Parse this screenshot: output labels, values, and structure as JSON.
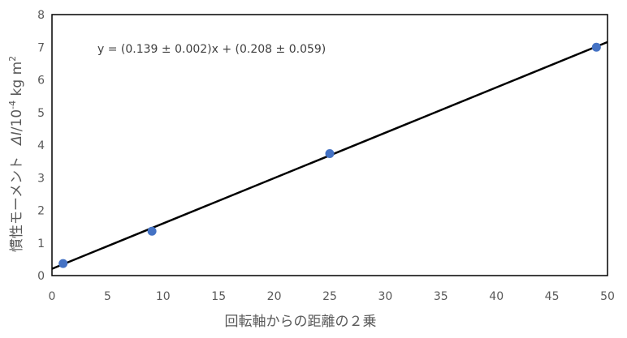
{
  "chart_data": {
    "type": "scatter",
    "xlabel": "回転軸からの距離の２乗",
    "ylabel_prefix": "慣性モーメント",
    "ylabel_symbol": "ΔI",
    "ylabel_unit_pre": "/10",
    "ylabel_unit_exp": "-4",
    "ylabel_unit_mid": " kg m",
    "ylabel_unit_exp2": "2",
    "xlim": [
      0,
      50
    ],
    "ylim": [
      0,
      8
    ],
    "xticks": [
      0,
      5,
      10,
      15,
      20,
      25,
      30,
      35,
      40,
      45,
      50
    ],
    "yticks": [
      0,
      1,
      2,
      3,
      4,
      5,
      6,
      7,
      8
    ],
    "grid": false,
    "series": [
      {
        "points": [
          {
            "x": 1,
            "y": 0.37
          },
          {
            "x": 9,
            "y": 1.36
          },
          {
            "x": 25,
            "y": 3.74
          },
          {
            "x": 49,
            "y": 7.0
          }
        ]
      }
    ],
    "trendline": {
      "slope": 0.139,
      "intercept": 0.208,
      "equation": "y = (0.139 ± 0.002)x + (0.208 ± 0.059)"
    },
    "colors": {
      "points": "#4472C4",
      "line": "#000000",
      "axis": "#000000",
      "text": "#595959"
    }
  }
}
